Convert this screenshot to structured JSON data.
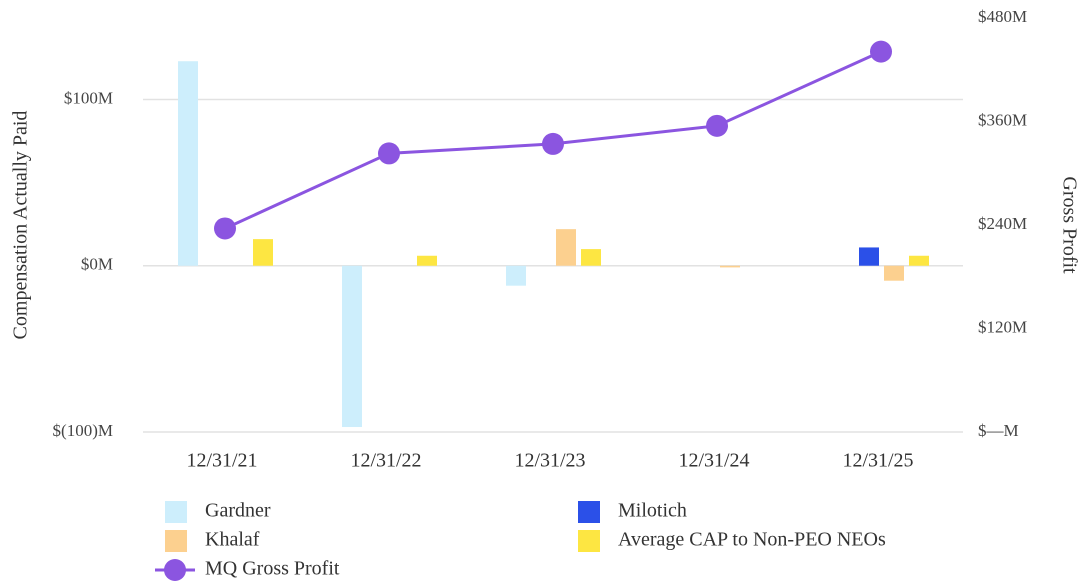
{
  "chart_data": {
    "type": "bar",
    "y_label": "Compensation Actually Paid",
    "y2_label": "Gross Profit",
    "categories": [
      "12/31/21",
      "12/31/22",
      "12/31/23",
      "12/31/24",
      "12/31/25"
    ],
    "series": [
      {
        "name": "Gardner",
        "color": "#cdeefc",
        "values": [
          123,
          -97,
          -12,
          null,
          null
        ]
      },
      {
        "name": "Milotich",
        "color": "#2b50e8",
        "values": [
          null,
          null,
          null,
          null,
          11
        ]
      },
      {
        "name": "Khalaf",
        "color": "#fcd08f",
        "values": [
          null,
          null,
          22,
          -1,
          -9
        ]
      },
      {
        "name": "Average CAP to Non-PEO NEOs",
        "color": "#fde642",
        "values": [
          16,
          6,
          10,
          null,
          6
        ]
      },
      {
        "name": "MQ Gross Profit",
        "color": "#8b55e0",
        "type": "line",
        "axis": "y2",
        "values": [
          236,
          323,
          334,
          355,
          441
        ]
      }
    ],
    "ylim": [
      -100,
      149
    ],
    "yticks": [
      {
        "value": -100,
        "label": "$(100)M"
      },
      {
        "value": 0,
        "label": "$0M"
      },
      {
        "value": 100,
        "label": "$100M"
      }
    ],
    "y2lim": [
      0,
      480
    ],
    "y2ticks": [
      {
        "value": 0,
        "label": "$—M"
      },
      {
        "value": 120,
        "label": "$120M"
      },
      {
        "value": 240,
        "label": "$240M"
      },
      {
        "value": 360,
        "label": "$360M"
      },
      {
        "value": 480,
        "label": "$480M"
      }
    ],
    "grid": true
  }
}
